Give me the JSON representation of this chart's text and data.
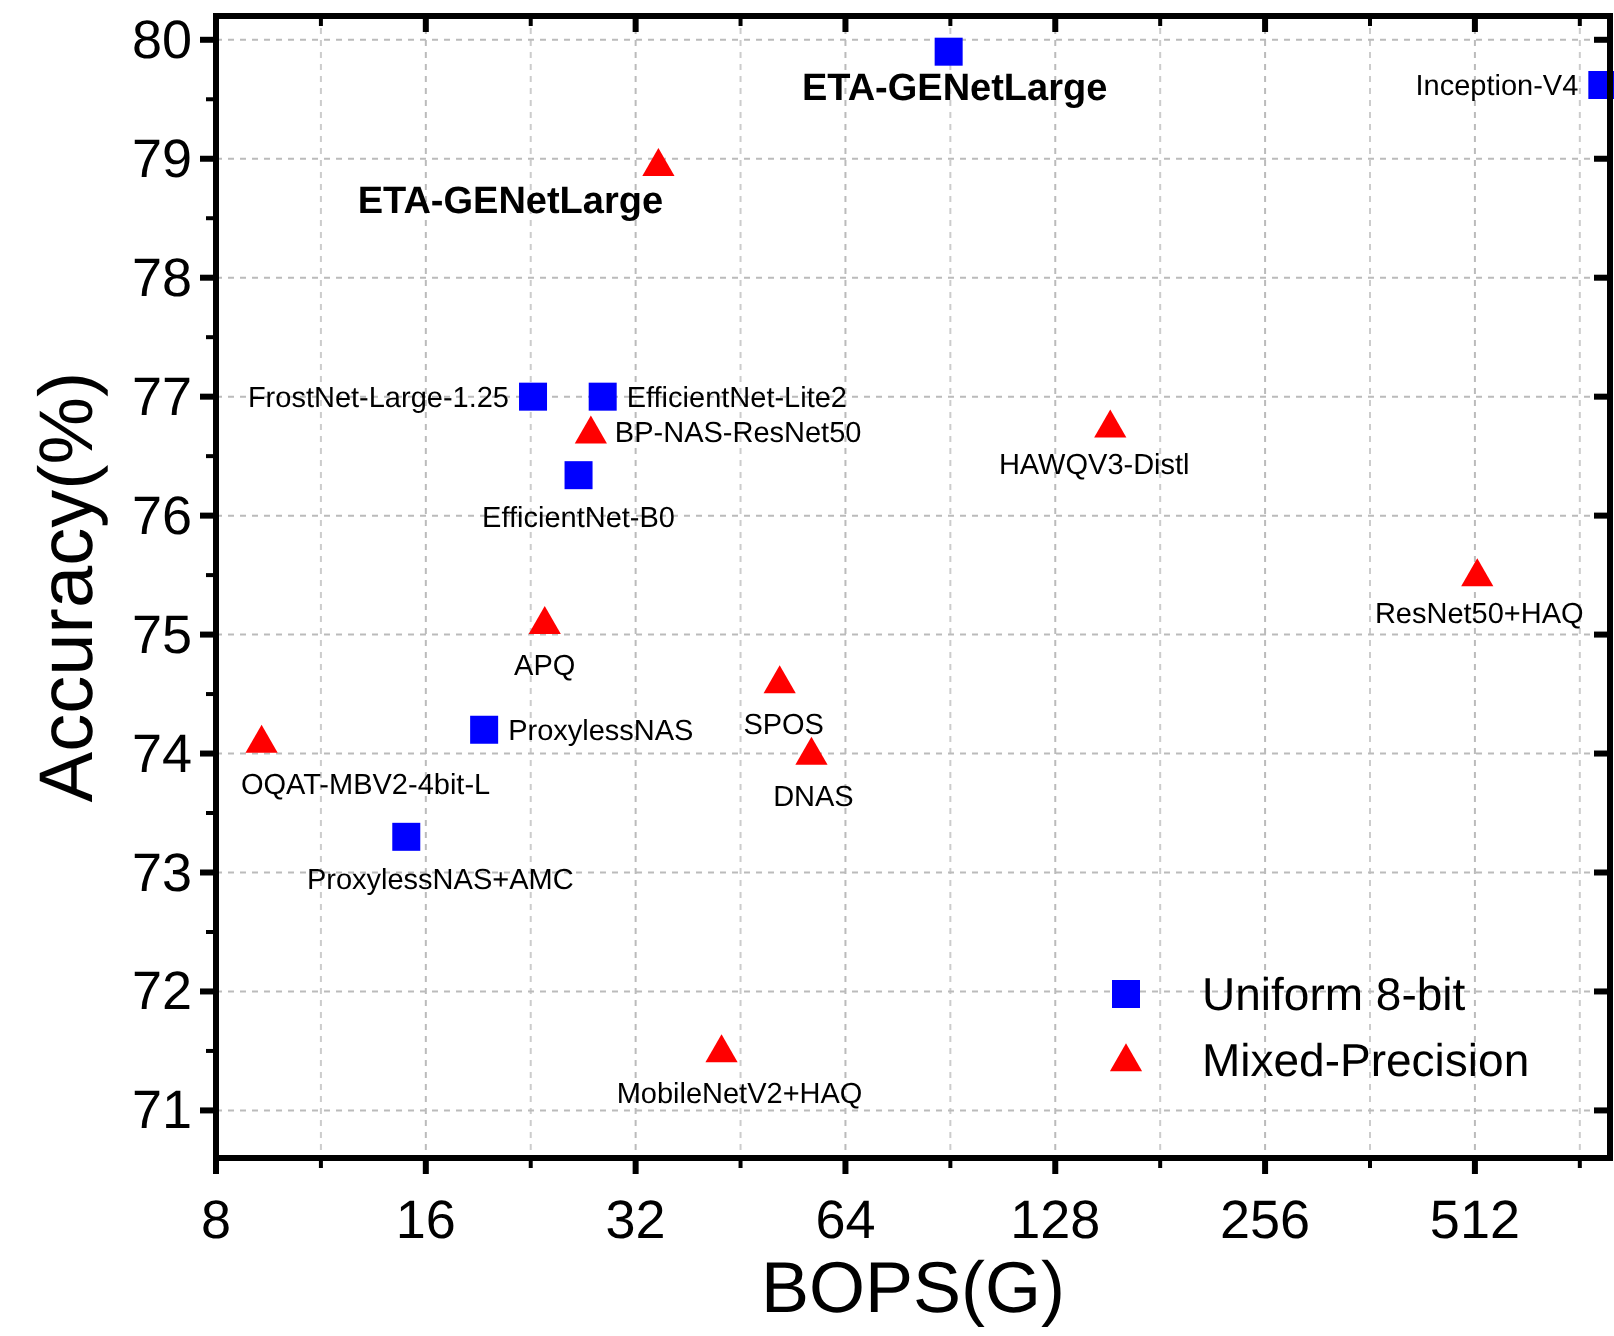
{
  "chart_data": {
    "type": "scatter",
    "xlabel": "BOPS(G)",
    "ylabel": "Accuracy(%)",
    "log": "x",
    "xlim": [
      8,
      800
    ],
    "ylim": [
      70.6,
      80.2
    ],
    "xticks": [
      8,
      16,
      32,
      64,
      128,
      256,
      512
    ],
    "yticks": [
      71,
      72,
      73,
      74,
      75,
      76,
      77,
      78,
      79,
      80
    ],
    "grid": true,
    "legend": "bottom right",
    "series": [
      {
        "name": "Uniform 8-bit",
        "color": "#0000ff",
        "marker": "square",
        "x": [
          90,
          780,
          22.8,
          28.7,
          26.5,
          19.4,
          15
        ],
        "values": [
          79.9,
          79.62,
          77.0,
          77.0,
          76.34,
          74.2,
          73.3
        ]
      },
      {
        "name": "Mixed-Precision",
        "color": "#ff0000",
        "marker": "triangle",
        "x": [
          34.5,
          27.6,
          23.7,
          9.3,
          51.5,
          57.2,
          153.5,
          516,
          42.5
        ],
        "values": [
          78.95,
          76.7,
          75.1,
          74.1,
          74.6,
          74.0,
          76.75,
          75.5,
          71.5
        ]
      }
    ],
    "annotations": [
      {
        "text": "ETA-GENetLarge",
        "x": 90,
        "y": 79.9
      },
      {
        "text": "ETA-GENetLarge",
        "x": 34.5,
        "y": 78.95
      },
      {
        "text": "Inception-V4",
        "x": 780,
        "y": 79.62
      },
      {
        "text": "FrostNet-Large-1.25",
        "x": 22.8,
        "y": 77.0
      },
      {
        "text": "EfficientNet-Lite2",
        "x": 28.7,
        "y": 77.0
      },
      {
        "text": "BP-NAS-ResNet50",
        "x": 27.6,
        "y": 76.7
      },
      {
        "text": "EfficientNet-B0",
        "x": 26.5,
        "y": 76.34
      },
      {
        "text": "APQ",
        "x": 23.7,
        "y": 75.1
      },
      {
        "text": "ProxylessNAS",
        "x": 19.4,
        "y": 74.2
      },
      {
        "text": "OQAT-MBV2-4bit-L",
        "x": 9.3,
        "y": 74.1
      },
      {
        "text": "ProxylessNAS+AMC",
        "x": 15,
        "y": 73.3
      },
      {
        "text": "SPOS",
        "x": 51.5,
        "y": 74.6
      },
      {
        "text": "DNAS",
        "x": 57.2,
        "y": 74.0
      },
      {
        "text": "HAWQV3-Distl",
        "x": 153.5,
        "y": 76.75
      },
      {
        "text": "ResNet50+HAQ",
        "x": 516,
        "y": 75.5
      },
      {
        "text": "MobileNetV2+HAQ",
        "x": 42.5,
        "y": 71.5
      }
    ]
  }
}
